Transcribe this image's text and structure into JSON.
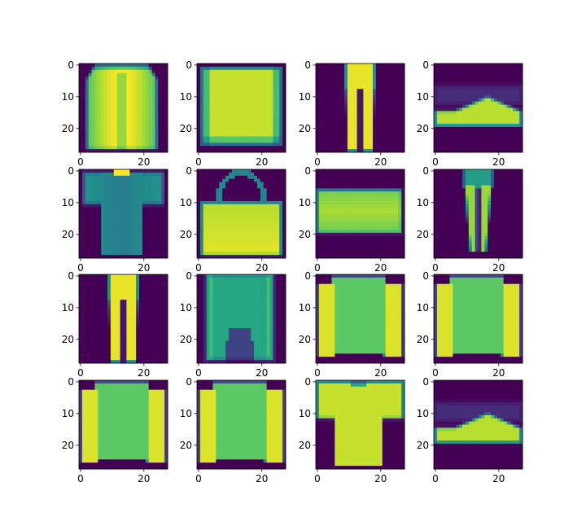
{
  "figure": {
    "colormap": "viridis",
    "background": "#ffffff",
    "axis_color": "#000000"
  },
  "chart_data": {
    "type": "heatmap",
    "grid": {
      "rows": 4,
      "cols": 4
    },
    "image_shape": [
      28,
      28
    ],
    "xlim": [
      -0.5,
      27.5
    ],
    "ylim": [
      27.5,
      -0.5
    ],
    "xticks": [
      0,
      20
    ],
    "yticks": [
      0,
      10,
      20
    ],
    "xticklabels": [
      "0",
      "20"
    ],
    "yticklabels": [
      "0",
      "10",
      "20"
    ],
    "value_range": [
      0,
      1
    ],
    "panels": [
      {
        "shape": "pullover"
      },
      {
        "shape": "sweater"
      },
      {
        "shape": "trouser"
      },
      {
        "shape": "sneaker"
      },
      {
        "shape": "tshirt"
      },
      {
        "shape": "bag"
      },
      {
        "shape": "flatbag"
      },
      {
        "shape": "trouser-thin"
      },
      {
        "shape": "trouser"
      },
      {
        "shape": "coat-open"
      },
      {
        "shape": "longsleeve"
      },
      {
        "shape": "longsleeve"
      },
      {
        "shape": "longsleeve"
      },
      {
        "shape": "longsleeve"
      },
      {
        "shape": "tshirt-long"
      },
      {
        "shape": "sneaker"
      }
    ]
  }
}
